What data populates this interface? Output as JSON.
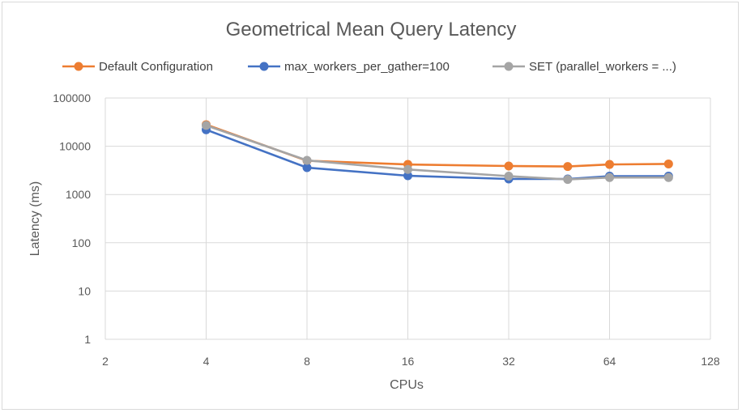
{
  "chart_data": {
    "type": "line",
    "title": "Geometrical Mean Query Latency",
    "xlabel": "CPUs",
    "ylabel": "Latency (ms)",
    "x_scale": "log2",
    "y_scale": "log10",
    "xlim": [
      2,
      128
    ],
    "ylim": [
      1,
      100000
    ],
    "x_ticks": [
      "2",
      "4",
      "8",
      "16",
      "32",
      "64",
      "128"
    ],
    "y_ticks": [
      "1",
      "10",
      "100",
      "1000",
      "10000",
      "100000"
    ],
    "grid": true,
    "legend_position": "top",
    "x": [
      4,
      8,
      16,
      32,
      48,
      64,
      96
    ],
    "series": [
      {
        "name": "Default Configuration",
        "color": "#ED7D31",
        "values": [
          28000,
          5000,
          4200,
          3900,
          3800,
          4200,
          4300
        ]
      },
      {
        "name": "max_workers_per_gather=100",
        "color": "#4472C4",
        "values": [
          22000,
          3600,
          2450,
          2100,
          2100,
          2400,
          2400
        ]
      },
      {
        "name": "SET (parallel_workers = ...)",
        "color": "#A5A5A5",
        "values": [
          27000,
          5100,
          3300,
          2400,
          2050,
          2250,
          2250
        ]
      }
    ]
  }
}
